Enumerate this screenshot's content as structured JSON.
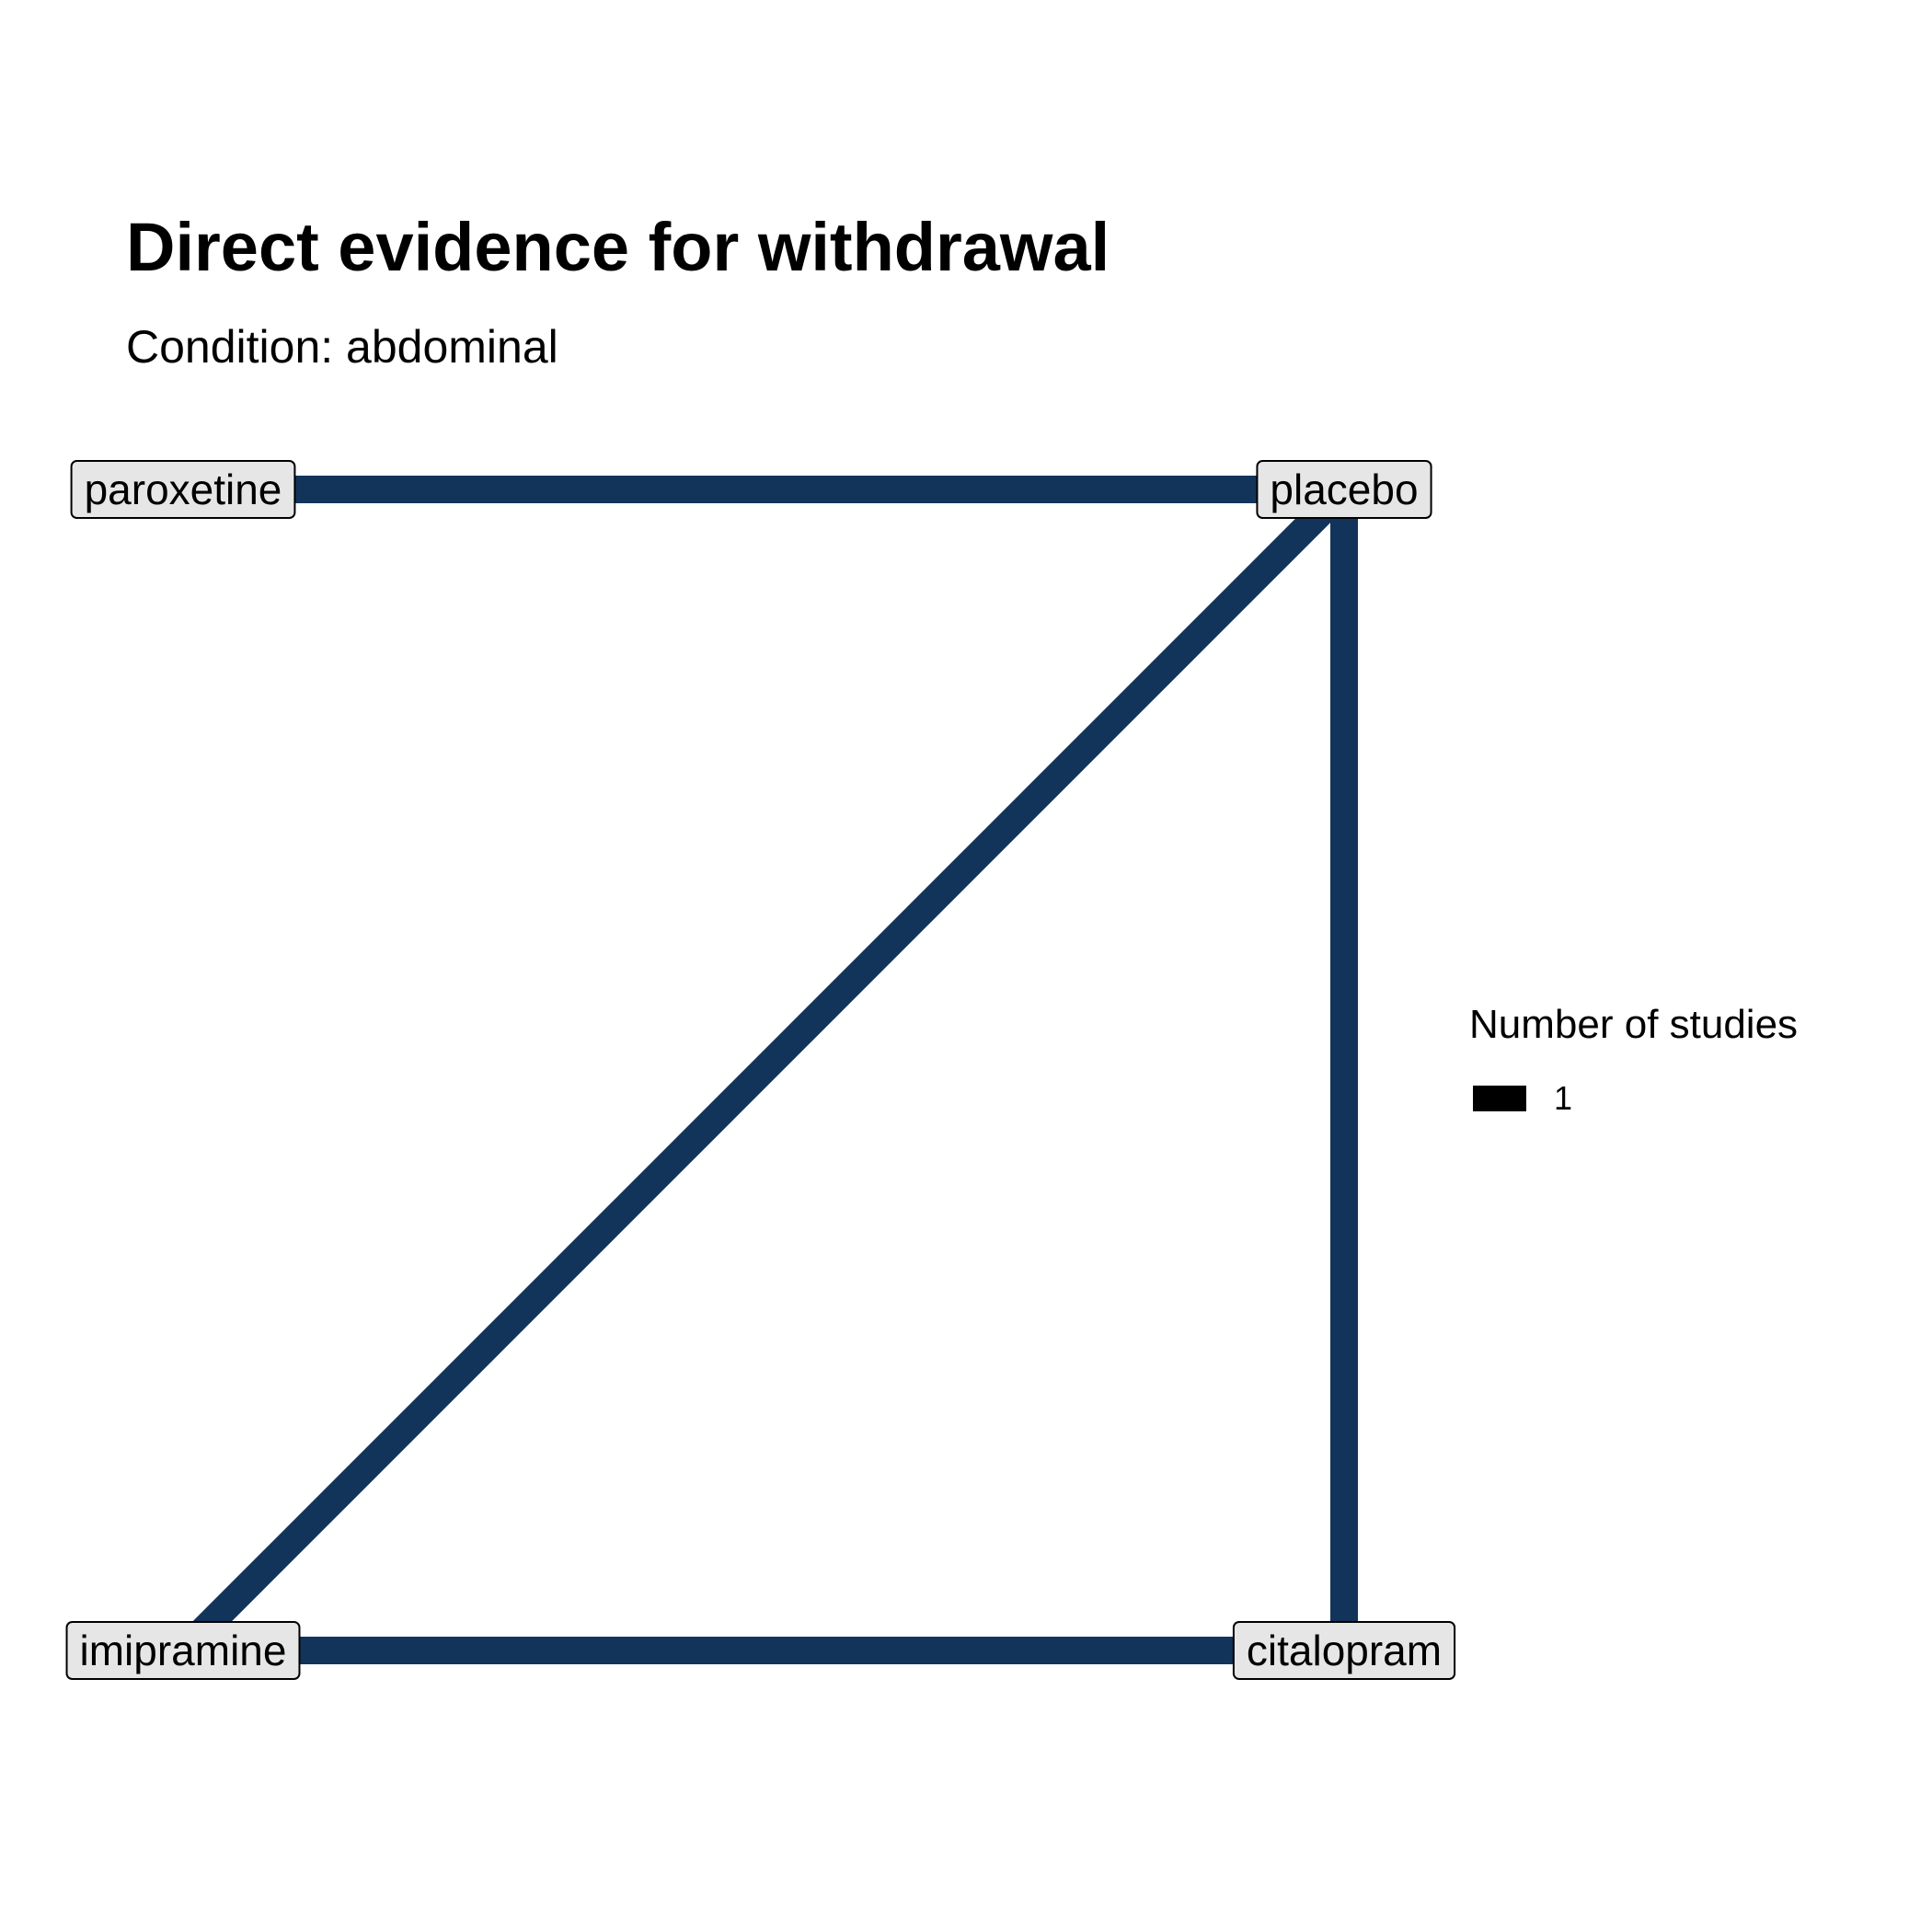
{
  "title": "Direct evidence for withdrawal",
  "subtitle": "Condition: abdominal",
  "edge_color": "#13345a",
  "nodes": [
    {
      "id": "paroxetine",
      "label": "paroxetine"
    },
    {
      "id": "placebo",
      "label": "placebo"
    },
    {
      "id": "imipramine",
      "label": "imipramine"
    },
    {
      "id": "citalopram",
      "label": "citalopram"
    }
  ],
  "edges": [
    {
      "from": "paroxetine",
      "to": "placebo",
      "studies": 1
    },
    {
      "from": "placebo",
      "to": "imipramine",
      "studies": 1
    },
    {
      "from": "placebo",
      "to": "citalopram",
      "studies": 1
    },
    {
      "from": "imipramine",
      "to": "citalopram",
      "studies": 1
    }
  ],
  "legend": {
    "title": "Number of studies",
    "items": [
      {
        "label": "1"
      }
    ]
  }
}
